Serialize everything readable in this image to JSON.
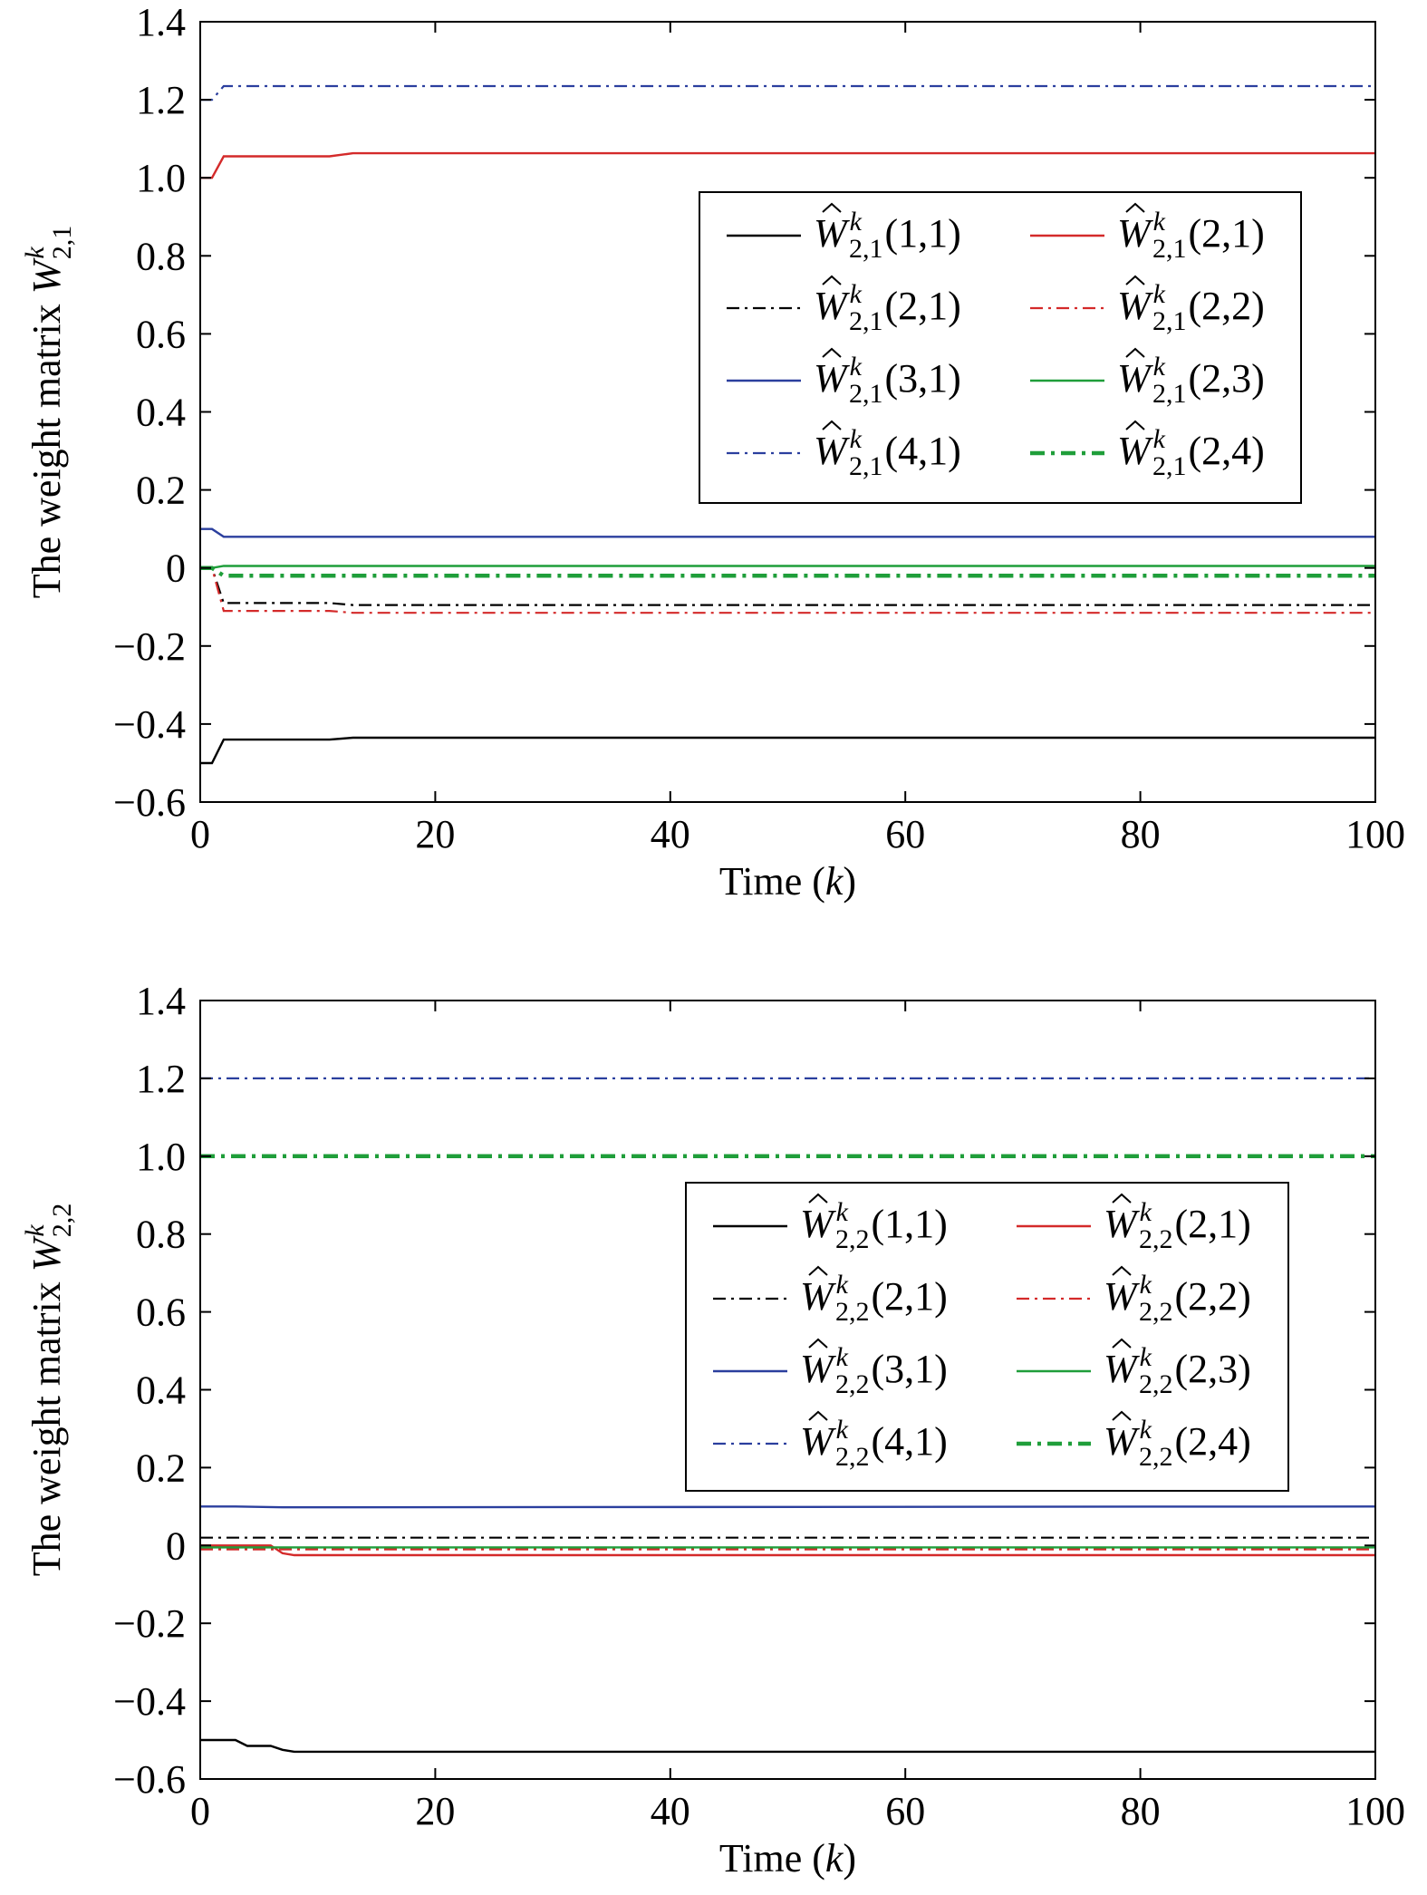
{
  "chart_data": [
    {
      "type": "line",
      "ylabel": "The weight matrix Ŵᵏ₂,₁",
      "ylabel_parts": {
        "prefix": "The weight matrix ",
        "symbol": "W",
        "sup": "k",
        "sub": "2,1"
      },
      "xlabel": "Time (k)",
      "xlabel_parts": {
        "prefix": "Time (",
        "italic": "k",
        "suffix": ")"
      },
      "xlim": [
        0,
        100
      ],
      "ylim": [
        -0.6,
        1.4
      ],
      "xticks": [
        "0",
        "20",
        "40",
        "60",
        "80",
        "100"
      ],
      "yticks": [
        "−0.6",
        "−0.4",
        "−0.2",
        "0",
        "0.2",
        "0.4",
        "0.6",
        "0.8",
        "1.0",
        "1.2",
        "1.4"
      ],
      "grid": false,
      "legend_position": "upper-right",
      "series": [
        {
          "name": "Ŵᵏ₂,₁(1,1)",
          "sym_sub": "2,1",
          "idx": "(1,1)",
          "color": "#000000",
          "style": "solid",
          "x": [
            0,
            1,
            2,
            5,
            11,
            13,
            100
          ],
          "y": [
            -0.5,
            -0.5,
            -0.44,
            -0.44,
            -0.44,
            -0.435,
            -0.435
          ]
        },
        {
          "name": "Ŵᵏ₂,₁(2,1)",
          "sym_sub": "2,1",
          "idx": "(2,1)",
          "color": "#d42a2a",
          "style": "solid",
          "x": [
            0,
            1,
            2,
            5,
            11,
            13,
            100
          ],
          "y": [
            1.0,
            1.0,
            1.055,
            1.055,
            1.055,
            1.063,
            1.063
          ]
        },
        {
          "name": "Ŵᵏ₂,₁(2,1)",
          "sym_sub": "2,1",
          "idx": "(2,1)",
          "color": "#000000",
          "style": "dashdot",
          "x": [
            0,
            1,
            2,
            5,
            11,
            13,
            100
          ],
          "y": [
            0.0,
            0.0,
            -0.09,
            -0.09,
            -0.09,
            -0.095,
            -0.095
          ]
        },
        {
          "name": "Ŵᵏ₂,₁(2,2)",
          "sym_sub": "2,1",
          "idx": "(2,2)",
          "color": "#d42a2a",
          "style": "dashdot",
          "x": [
            0,
            1,
            2,
            5,
            11,
            13,
            100
          ],
          "y": [
            0.0,
            0.0,
            -0.11,
            -0.11,
            -0.11,
            -0.115,
            -0.115
          ]
        },
        {
          "name": "Ŵᵏ₂,₁(3,1)",
          "sym_sub": "2,1",
          "idx": "(3,1)",
          "color": "#2b3f9e",
          "style": "solid",
          "x": [
            0,
            1,
            2,
            100
          ],
          "y": [
            0.1,
            0.1,
            0.08,
            0.08
          ]
        },
        {
          "name": "Ŵᵏ₂,₁(2,3)",
          "sym_sub": "2,1",
          "idx": "(2,3)",
          "color": "#1f9e3a",
          "style": "solid",
          "x": [
            0,
            1,
            2,
            100
          ],
          "y": [
            0.0,
            0.0,
            0.005,
            0.005
          ]
        },
        {
          "name": "Ŵᵏ₂,₁(4,1)",
          "sym_sub": "2,1",
          "idx": "(4,1)",
          "color": "#2b3f9e",
          "style": "dashdot",
          "x": [
            0,
            1,
            2,
            100
          ],
          "y": [
            1.2,
            1.2,
            1.235,
            1.235
          ]
        },
        {
          "name": "Ŵᵏ₂,₁(2,4)",
          "sym_sub": "2,1",
          "idx": "(2,4)",
          "color": "#1f9e3a",
          "style": "dashdot-thick",
          "x": [
            0,
            1,
            2,
            100
          ],
          "y": [
            0.0,
            0.0,
            -0.02,
            -0.02
          ]
        }
      ]
    },
    {
      "type": "line",
      "ylabel": "The weight matrix Ŵᵏ₂,₂",
      "ylabel_parts": {
        "prefix": "The weight matrix ",
        "symbol": "W",
        "sup": "k",
        "sub": "2,2"
      },
      "xlabel": "Time (k)",
      "xlabel_parts": {
        "prefix": "Time (",
        "italic": "k",
        "suffix": ")"
      },
      "xlim": [
        0,
        100
      ],
      "ylim": [
        -0.6,
        1.4
      ],
      "xticks": [
        "0",
        "20",
        "40",
        "60",
        "80",
        "100"
      ],
      "yticks": [
        "−0.6",
        "−0.4",
        "−0.2",
        "0",
        "0.2",
        "0.4",
        "0.6",
        "0.8",
        "1.0",
        "1.2",
        "1.4"
      ],
      "grid": false,
      "legend_position": "upper-right",
      "series": [
        {
          "name": "Ŵᵏ₂,₂(1,1)",
          "sym_sub": "2,2",
          "idx": "(1,1)",
          "color": "#000000",
          "style": "solid",
          "x": [
            0,
            3,
            4,
            6,
            7,
            8,
            100
          ],
          "y": [
            -0.5,
            -0.5,
            -0.515,
            -0.515,
            -0.525,
            -0.53,
            -0.53
          ]
        },
        {
          "name": "Ŵᵏ₂,₂(2,1)",
          "sym_sub": "2,2",
          "idx": "(2,1)",
          "color": "#d42a2a",
          "style": "solid",
          "x": [
            0,
            6,
            7,
            8,
            100
          ],
          "y": [
            0.0,
            0.0,
            -0.02,
            -0.025,
            -0.025
          ]
        },
        {
          "name": "Ŵᵏ₂,₂(2,1)",
          "sym_sub": "2,2",
          "idx": "(2,1)",
          "color": "#000000",
          "style": "dashdot",
          "x": [
            0,
            100
          ],
          "y": [
            0.02,
            0.02
          ]
        },
        {
          "name": "Ŵᵏ₂,₂(2,2)",
          "sym_sub": "2,2",
          "idx": "(2,2)",
          "color": "#d42a2a",
          "style": "dashdot",
          "x": [
            0,
            100
          ],
          "y": [
            -0.01,
            -0.01
          ]
        },
        {
          "name": "Ŵᵏ₂,₂(3,1)",
          "sym_sub": "2,2",
          "idx": "(3,1)",
          "color": "#2b3f9e",
          "style": "solid",
          "x": [
            0,
            3,
            7,
            100
          ],
          "y": [
            0.1,
            0.1,
            0.098,
            0.1
          ]
        },
        {
          "name": "Ŵᵏ₂,₂(2,3)",
          "sym_sub": "2,2",
          "idx": "(2,3)",
          "color": "#1f9e3a",
          "style": "solid",
          "x": [
            0,
            100
          ],
          "y": [
            -0.005,
            -0.005
          ]
        },
        {
          "name": "Ŵᵏ₂,₂(4,1)",
          "sym_sub": "2,2",
          "idx": "(4,1)",
          "color": "#2b3f9e",
          "style": "dashdot",
          "x": [
            0,
            100
          ],
          "y": [
            1.2,
            1.2
          ]
        },
        {
          "name": "Ŵᵏ₂,₂(2,4)",
          "sym_sub": "2,2",
          "idx": "(2,4)",
          "color": "#1f9e3a",
          "style": "dashdot-thick",
          "x": [
            0,
            100
          ],
          "y": [
            1.0,
            1.0
          ]
        }
      ]
    }
  ]
}
